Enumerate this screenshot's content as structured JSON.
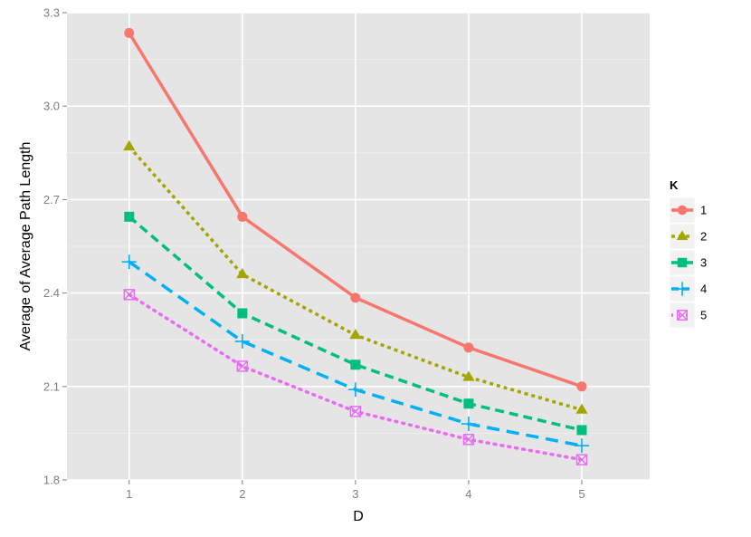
{
  "chart_data": {
    "type": "line",
    "xlabel": "D",
    "ylabel": "Average of Average Path Length",
    "x": [
      1,
      2,
      3,
      4,
      5
    ],
    "x_ticks": [
      "1",
      "2",
      "3",
      "4",
      "5"
    ],
    "xlim": [
      0.45,
      5.6
    ],
    "ylim": [
      1.8,
      3.3
    ],
    "y_ticks": [
      "1.8",
      "2.1",
      "2.4",
      "2.7",
      "3.0",
      "3.3"
    ],
    "grid": true,
    "legend": {
      "title": "K",
      "position": "right"
    },
    "series": [
      {
        "name": "1",
        "color": "#f8766d",
        "marker": "circle",
        "linestyle": "solid",
        "values": [
          3.235,
          2.645,
          2.385,
          2.225,
          2.1
        ]
      },
      {
        "name": "2",
        "color": "#a3a500",
        "marker": "triangle",
        "linestyle": "dotted",
        "values": [
          2.87,
          2.46,
          2.265,
          2.13,
          2.025
        ]
      },
      {
        "name": "3",
        "color": "#00bf7d",
        "marker": "square",
        "linestyle": "dashed",
        "values": [
          2.645,
          2.335,
          2.17,
          2.045,
          1.96
        ]
      },
      {
        "name": "4",
        "color": "#00b0f6",
        "marker": "plus",
        "linestyle": "longdash",
        "values": [
          2.5,
          2.245,
          2.09,
          1.98,
          1.91
        ]
      },
      {
        "name": "5",
        "color": "#e76bf3",
        "marker": "boxcross",
        "linestyle": "dotted2",
        "values": [
          2.395,
          2.165,
          2.02,
          1.93,
          1.865
        ]
      }
    ]
  }
}
